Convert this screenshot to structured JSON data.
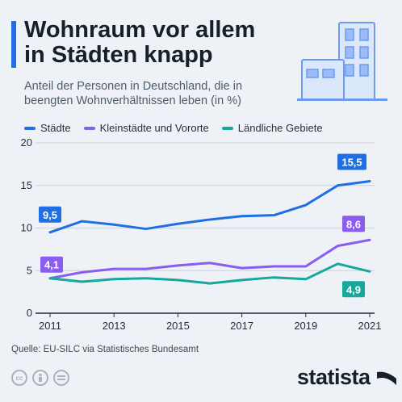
{
  "title": {
    "line1": "Wohnraum vor allem",
    "line2": "in Städten knapp"
  },
  "subtitle": {
    "line1": "Anteil der Personen in Deutschland, die in",
    "line2": "beengten Wohnverhältnissen leben (in %)"
  },
  "source": "Quelle: EU-SILC via Statistisches Bundesamt",
  "brand": "statista",
  "license_icons": [
    "cc-icon",
    "attribution-icon",
    "no-derivatives-icon"
  ],
  "colors": {
    "staedte": "#1f6ee6",
    "kleinstaedte": "#8a5cf0",
    "laendlich": "#16a89a",
    "accent": "#1f6ee6"
  },
  "chart_data": {
    "type": "line",
    "x": [
      2011,
      2012,
      2013,
      2014,
      2015,
      2016,
      2017,
      2018,
      2019,
      2020,
      2021
    ],
    "series": [
      {
        "name": "Städte",
        "color": "#1f6ee6",
        "values": [
          9.5,
          10.8,
          10.4,
          9.9,
          10.5,
          11.0,
          11.4,
          11.5,
          12.7,
          15.0,
          15.5
        ],
        "labels": [
          {
            "index": 0,
            "text": "9,5"
          },
          {
            "index": 10,
            "text": "15,5"
          }
        ]
      },
      {
        "name": "Kleinstädte und Vororte",
        "color": "#8a5cf0",
        "values": [
          4.1,
          4.8,
          5.2,
          5.2,
          5.6,
          5.9,
          5.3,
          5.5,
          5.5,
          7.9,
          8.6
        ],
        "labels": [
          {
            "index": 0,
            "text": "4,1"
          },
          {
            "index": 10,
            "text": "8,6"
          }
        ]
      },
      {
        "name": "Ländliche Gebiete",
        "color": "#16a89a",
        "values": [
          4.1,
          3.7,
          4.0,
          4.1,
          3.9,
          3.5,
          3.9,
          4.2,
          4.0,
          5.8,
          4.9
        ],
        "labels": [
          {
            "index": 10,
            "text": "4,9"
          }
        ]
      }
    ],
    "yticks": [
      0,
      5,
      10,
      15,
      20
    ],
    "ytick_labels": [
      "0",
      "5",
      "10",
      "15",
      "20"
    ],
    "xticks": [
      2011,
      2013,
      2015,
      2017,
      2019,
      2021
    ],
    "xtick_labels": [
      "2011",
      "2013",
      "2015",
      "2017",
      "2019",
      "2021"
    ],
    "ylim": [
      0,
      20
    ],
    "xlim": [
      2011,
      2021
    ],
    "grid": true,
    "legend": "top"
  }
}
